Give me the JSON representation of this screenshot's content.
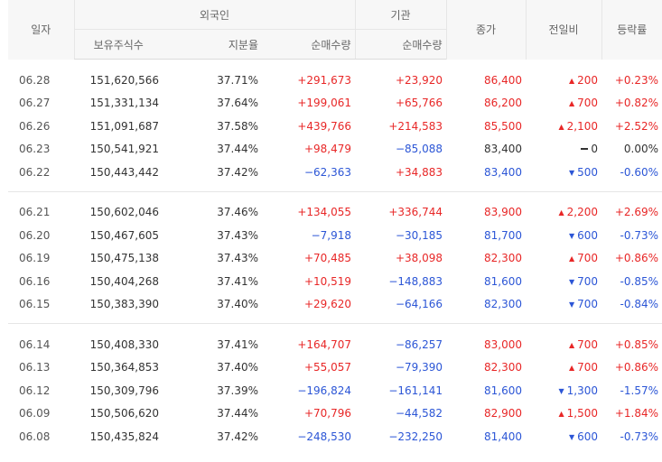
{
  "headers": {
    "date": "일자",
    "foreign": "외국인",
    "institution": "기관",
    "holdings": "보유주식수",
    "ratio": "지분율",
    "foreign_net": "순매수량",
    "inst_net": "순매수량",
    "close": "종가",
    "change": "전일비",
    "rate": "등락률"
  },
  "colors": {
    "up": "#e82727",
    "down": "#2c56d6",
    "flat": "#333333"
  },
  "groups": [
    [
      {
        "date": "06.28",
        "holdings": "151,620,566",
        "ratio": "37.71%",
        "foreign_net": "+291,673",
        "inst_net": "+23,920",
        "close": "86,400",
        "change_dir": "up",
        "change": "200",
        "rate": "+0.23%"
      },
      {
        "date": "06.27",
        "holdings": "151,331,134",
        "ratio": "37.64%",
        "foreign_net": "+199,061",
        "inst_net": "+65,766",
        "close": "86,200",
        "change_dir": "up",
        "change": "700",
        "rate": "+0.82%"
      },
      {
        "date": "06.26",
        "holdings": "151,091,687",
        "ratio": "37.58%",
        "foreign_net": "+439,766",
        "inst_net": "+214,583",
        "close": "85,500",
        "change_dir": "up",
        "change": "2,100",
        "rate": "+2.52%"
      },
      {
        "date": "06.23",
        "holdings": "150,541,921",
        "ratio": "37.44%",
        "foreign_net": "+98,479",
        "inst_net": "−85,088",
        "close": "83,400",
        "change_dir": "flat",
        "change": "0",
        "rate": "0.00%"
      },
      {
        "date": "06.22",
        "holdings": "150,443,442",
        "ratio": "37.42%",
        "foreign_net": "−62,363",
        "inst_net": "+34,883",
        "close": "83,400",
        "change_dir": "down",
        "change": "500",
        "rate": "-0.60%"
      }
    ],
    [
      {
        "date": "06.21",
        "holdings": "150,602,046",
        "ratio": "37.46%",
        "foreign_net": "+134,055",
        "inst_net": "+336,744",
        "close": "83,900",
        "change_dir": "up",
        "change": "2,200",
        "rate": "+2.69%"
      },
      {
        "date": "06.20",
        "holdings": "150,467,605",
        "ratio": "37.43%",
        "foreign_net": "−7,918",
        "inst_net": "−30,185",
        "close": "81,700",
        "change_dir": "down",
        "change": "600",
        "rate": "-0.73%"
      },
      {
        "date": "06.19",
        "holdings": "150,475,138",
        "ratio": "37.43%",
        "foreign_net": "+70,485",
        "inst_net": "+38,098",
        "close": "82,300",
        "change_dir": "up",
        "change": "700",
        "rate": "+0.86%"
      },
      {
        "date": "06.16",
        "holdings": "150,404,268",
        "ratio": "37.41%",
        "foreign_net": "+10,519",
        "inst_net": "−148,883",
        "close": "81,600",
        "change_dir": "down",
        "change": "700",
        "rate": "-0.85%"
      },
      {
        "date": "06.15",
        "holdings": "150,383,390",
        "ratio": "37.40%",
        "foreign_net": "+29,620",
        "inst_net": "−64,166",
        "close": "82,300",
        "change_dir": "down",
        "change": "700",
        "rate": "-0.84%"
      }
    ],
    [
      {
        "date": "06.14",
        "holdings": "150,408,330",
        "ratio": "37.41%",
        "foreign_net": "+164,707",
        "inst_net": "−86,257",
        "close": "83,000",
        "change_dir": "up",
        "change": "700",
        "rate": "+0.85%"
      },
      {
        "date": "06.13",
        "holdings": "150,364,853",
        "ratio": "37.40%",
        "foreign_net": "+55,057",
        "inst_net": "−79,390",
        "close": "82,300",
        "change_dir": "up",
        "change": "700",
        "rate": "+0.86%"
      },
      {
        "date": "06.12",
        "holdings": "150,309,796",
        "ratio": "37.39%",
        "foreign_net": "−196,824",
        "inst_net": "−161,141",
        "close": "81,600",
        "change_dir": "down",
        "change": "1,300",
        "rate": "-1.57%"
      },
      {
        "date": "06.09",
        "holdings": "150,506,620",
        "ratio": "37.44%",
        "foreign_net": "+70,796",
        "inst_net": "−44,582",
        "close": "82,900",
        "change_dir": "up",
        "change": "1,500",
        "rate": "+1.84%"
      },
      {
        "date": "06.08",
        "holdings": "150,435,824",
        "ratio": "37.42%",
        "foreign_net": "−248,530",
        "inst_net": "−232,250",
        "close": "81,400",
        "change_dir": "down",
        "change": "600",
        "rate": "-0.73%"
      }
    ]
  ]
}
